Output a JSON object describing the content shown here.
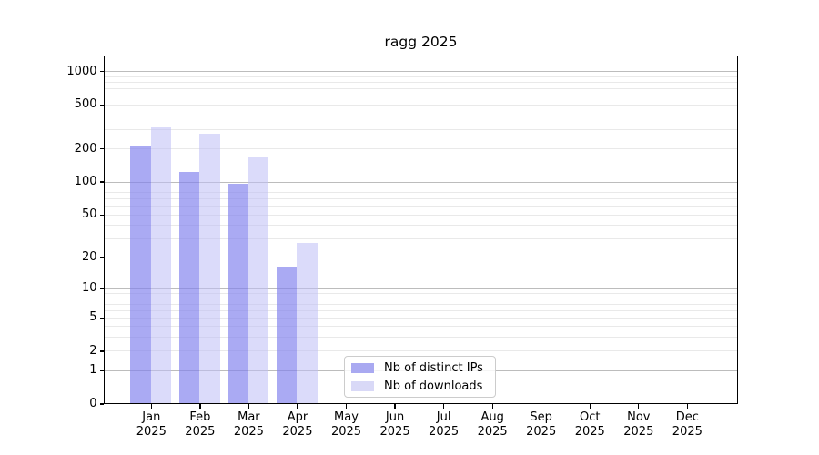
{
  "title": "ragg 2025",
  "chart_data": {
    "type": "bar",
    "title": "ragg 2025",
    "categories": [
      "Jan",
      "Feb",
      "Mar",
      "Apr",
      "May",
      "Jun",
      "Jul",
      "Aug",
      "Sep",
      "Oct",
      "Nov",
      "Dec"
    ],
    "year_label": "2025",
    "series": [
      {
        "name": "Nb of distinct IPs",
        "values": [
          210,
          120,
          95,
          16,
          0,
          0,
          0,
          0,
          0,
          0,
          0,
          0
        ]
      },
      {
        "name": "Nb of downloads",
        "values": [
          310,
          267,
          166,
          27,
          0,
          0,
          0,
          0,
          0,
          0,
          0,
          0
        ]
      }
    ],
    "xlabel": "",
    "ylabel": "",
    "yscale": "log1p",
    "ylim": [
      0,
      1400
    ],
    "y_ticks": [
      0,
      1,
      2,
      5,
      10,
      20,
      50,
      100,
      200,
      500,
      1000
    ],
    "grid": "horizontal, log minor gridlines",
    "legend_position": "lower center"
  },
  "colors": {
    "ips_bar_fill": "rgba(130,130,238,0.68)",
    "downloads_bar_fill": "rgba(190,190,245,0.55)",
    "ips_legend_swatch": "#a9a9f1",
    "downloads_legend_swatch": "#d9d9f7",
    "major_gridline": "#bcbcbc",
    "minor_gridline": "#e9e9e9",
    "spine": "#000000"
  }
}
